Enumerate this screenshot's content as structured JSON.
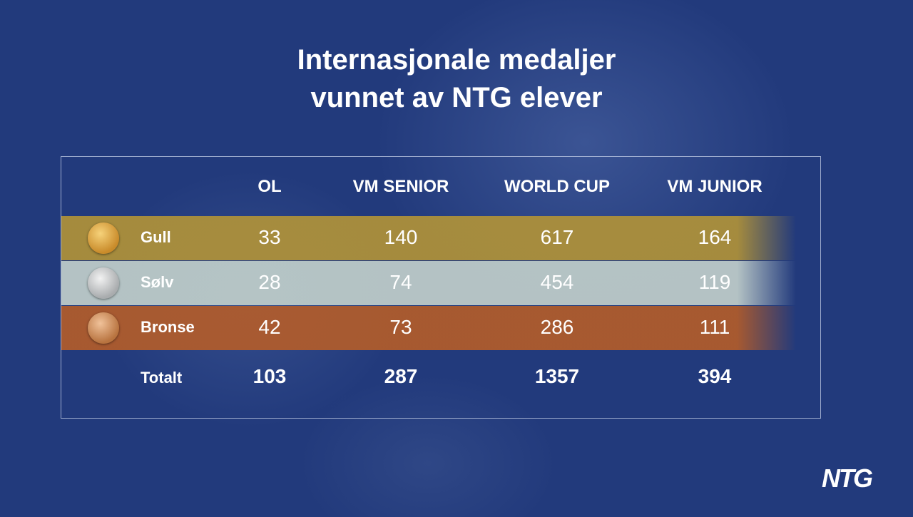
{
  "title": [
    "Internasjonale medaljer",
    "vunnet av NTG elever"
  ],
  "table": {
    "columns": [
      "OL",
      "VM SENIOR",
      "WORLD CUP",
      "VM JUNIOR"
    ],
    "rows": [
      {
        "label": "Gull",
        "values": [
          33,
          140,
          617,
          164
        ]
      },
      {
        "label": "Sølv",
        "values": [
          28,
          74,
          454,
          119
        ]
      },
      {
        "label": "Bronse",
        "values": [
          42,
          73,
          286,
          111
        ]
      }
    ],
    "total": {
      "label": "Totalt",
      "values": [
        103,
        287,
        1357,
        394
      ]
    }
  },
  "logo": "NTG"
}
